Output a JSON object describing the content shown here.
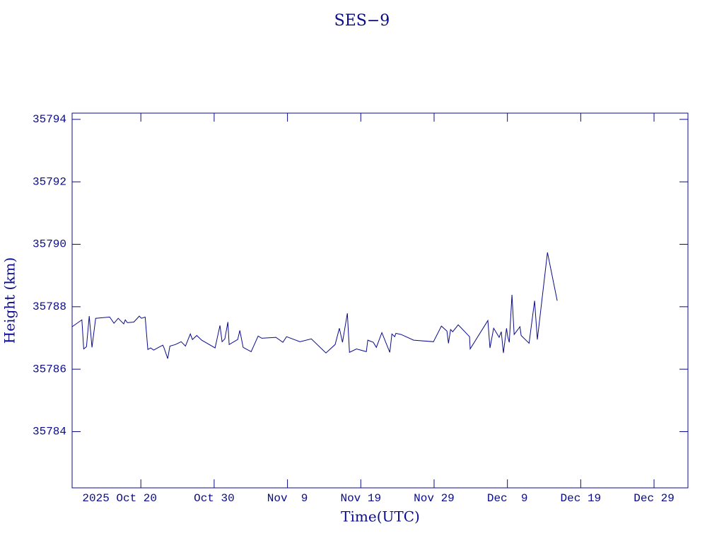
{
  "chart_data": {
    "type": "line",
    "title": "SES−9",
    "xlabel": "Time(UTC)",
    "ylabel": "Height (km)",
    "color": "#0a0a8c",
    "x": [
      "2025-10-10T15:00",
      "2025-10-11T23:00",
      "2025-10-12T05:00",
      "2025-10-12T14:00",
      "2025-10-12T23:00",
      "2025-10-13T08:00",
      "2025-10-13T20:00",
      "2025-10-15T18:00",
      "2025-10-16T08:00",
      "2025-10-16T22:00",
      "2025-10-17T16:00",
      "2025-10-17T21:00",
      "2025-10-18T04:00",
      "2025-10-19T01:00",
      "2025-10-19T19:00",
      "2025-10-20T02:00",
      "2025-10-20T14:00",
      "2025-10-20T23:00",
      "2025-10-21T08:00",
      "2025-10-21T18:00",
      "2025-10-22T10:00",
      "2025-10-23T00:00",
      "2025-10-23T04:00",
      "2025-10-23T16:00",
      "2025-10-23T23:00",
      "2025-10-24T17:00",
      "2025-10-25T12:00",
      "2025-10-26T02:00",
      "2025-10-26T18:00",
      "2025-10-27T01:00",
      "2025-10-27T15:00",
      "2025-10-28T07:00",
      "2025-10-30T03:00",
      "2025-10-30T19:00",
      "2025-10-31T02:00",
      "2025-10-31T11:00",
      "2025-10-31T21:00",
      "2025-11-01T01:00",
      "2025-11-02T05:00",
      "2025-11-02T12:00",
      "2025-11-02T23:00",
      "2025-11-04T01:00",
      "2025-11-05T00:00",
      "2025-11-05T12:00",
      "2025-11-07T10:00",
      "2025-11-08T09:00",
      "2025-11-08T21:00",
      "2025-11-10T17:00",
      "2025-11-12T06:00",
      "2025-11-14T06:00",
      "2025-11-15T12:00",
      "2025-11-16T02:00",
      "2025-11-16T12:00",
      "2025-11-17T04:00",
      "2025-11-17T11:00",
      "2025-11-18T10:00",
      "2025-11-19T18:00",
      "2025-11-19T23:00",
      "2025-11-20T17:00",
      "2025-11-21T03:00",
      "2025-11-21T21:00",
      "2025-11-22T23:00",
      "2025-11-23T06:00",
      "2025-11-23T15:00",
      "2025-11-23T19:00",
      "2025-11-24T12:00",
      "2025-11-26T05:00",
      "2025-11-28T22:00",
      "2025-11-30T00:00",
      "2025-11-30T18:00",
      "2025-11-30T23:00",
      "2025-12-01T06:00",
      "2025-12-01T13:00",
      "2025-12-02T07:00",
      "2025-12-03T20:00",
      "2025-12-03T22:00",
      "2025-12-06T08:00",
      "2025-12-06T15:00",
      "2025-12-07T03:00",
      "2025-12-07T21:00",
      "2025-12-08T04:00",
      "2025-12-08T11:00",
      "2025-12-08T21:00",
      "2025-12-09T01:00",
      "2025-12-09T06:00",
      "2025-12-09T15:00",
      "2025-12-09T22:00",
      "2025-12-10T17:00",
      "2025-12-10T21:00",
      "2025-12-11T23:00",
      "2025-12-12T17:00",
      "2025-12-13T02:00",
      "2025-12-14T11:00",
      "2025-12-15T19:00"
    ],
    "values": [
      35787.36,
      35787.58,
      35786.65,
      35786.72,
      35787.7,
      35786.7,
      35787.63,
      35787.67,
      35787.47,
      35787.63,
      35787.45,
      35787.58,
      35787.49,
      35787.51,
      35787.7,
      35787.63,
      35787.67,
      35786.63,
      35786.68,
      35786.61,
      35786.7,
      35786.77,
      35786.68,
      35786.34,
      35786.74,
      35786.79,
      35786.88,
      35786.74,
      35787.13,
      35786.95,
      35787.08,
      35786.93,
      35786.68,
      35787.4,
      35786.88,
      35786.97,
      35787.51,
      35786.79,
      35786.95,
      35787.24,
      35786.7,
      35786.56,
      35787.06,
      35786.99,
      35787.02,
      35786.86,
      35787.04,
      35786.88,
      35786.97,
      35786.52,
      35786.79,
      35787.31,
      35786.86,
      35787.79,
      35786.54,
      35786.65,
      35786.56,
      35786.93,
      35786.86,
      35786.7,
      35787.17,
      35786.54,
      35787.13,
      35787.04,
      35787.15,
      35787.11,
      35786.93,
      35786.88,
      35787.38,
      35787.22,
      35786.83,
      35787.27,
      35787.2,
      35787.42,
      35787.04,
      35786.65,
      35787.56,
      35786.68,
      35787.31,
      35787.02,
      35787.2,
      35786.52,
      35787.31,
      35787.04,
      35786.86,
      35788.38,
      35787.11,
      35787.36,
      35787.08,
      35786.83,
      35788.19,
      35786.95,
      35789.74,
      35788.19
    ],
    "xlim": [
      "2025-10-10T15:00",
      "2026-01-02T15:00"
    ],
    "xticks": [
      {
        "value": "2025-10-20",
        "label": "2025 Oct 20"
      },
      {
        "value": "2025-10-30",
        "label": "Oct 30"
      },
      {
        "value": "2025-11-09",
        "label": "Nov  9"
      },
      {
        "value": "2025-11-19",
        "label": "Nov 19"
      },
      {
        "value": "2025-11-29",
        "label": "Nov 29"
      },
      {
        "value": "2025-12-09",
        "label": "Dec  9"
      },
      {
        "value": "2025-12-19",
        "label": "Dec 19"
      },
      {
        "value": "2025-12-29",
        "label": "Dec 29"
      }
    ],
    "ylim": [
      35782.2,
      35794.2
    ],
    "yticks": [
      35784,
      35786,
      35788,
      35790,
      35792,
      35794
    ]
  }
}
